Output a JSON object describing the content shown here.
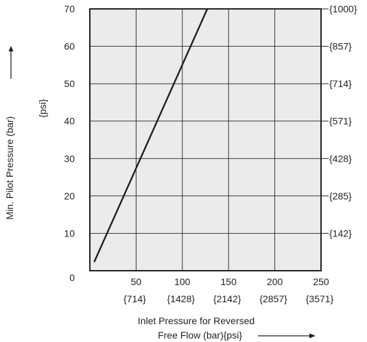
{
  "chart_data": {
    "type": "line",
    "colors": {
      "plot_background": "#ebebeb",
      "grid": "#231f20",
      "frame": "#231f20",
      "line": "#231f20",
      "text": "#231f20"
    },
    "grid": true,
    "x_axis": {
      "range": [
        0,
        250
      ],
      "ticks": [
        0,
        50,
        100,
        150,
        200,
        250
      ],
      "tick_labels": [
        "",
        "50",
        "100",
        "150",
        "200",
        "250"
      ],
      "secondary_tick_labels": [
        "",
        "{714}",
        "{1428}",
        "{2142}",
        "{2857}",
        "{3571}"
      ],
      "label_line1": "Inlet Pressure for Reversed",
      "label_line2": "Free Flow (bar){psi}",
      "arrow": "right"
    },
    "y_axis": {
      "range": [
        0,
        70
      ],
      "ticks": [
        0,
        10,
        20,
        30,
        40,
        50,
        60,
        70
      ],
      "tick_labels": [
        "0",
        "10",
        "20",
        "30",
        "40",
        "50",
        "60",
        "70"
      ],
      "label": "Min. Pilot Pressure (bar)",
      "label_secondary": "{psi}",
      "arrow": "up"
    },
    "y_axis_right": {
      "ticks": [
        10,
        20,
        30,
        40,
        50,
        60,
        70
      ],
      "tick_labels": [
        "{142}",
        "{285}",
        "{428}",
        "{571}",
        "{714}",
        "{857}",
        "{1000}"
      ]
    },
    "series": [
      {
        "x": [
          5,
          127
        ],
        "y": [
          2.5,
          70
        ]
      }
    ]
  }
}
